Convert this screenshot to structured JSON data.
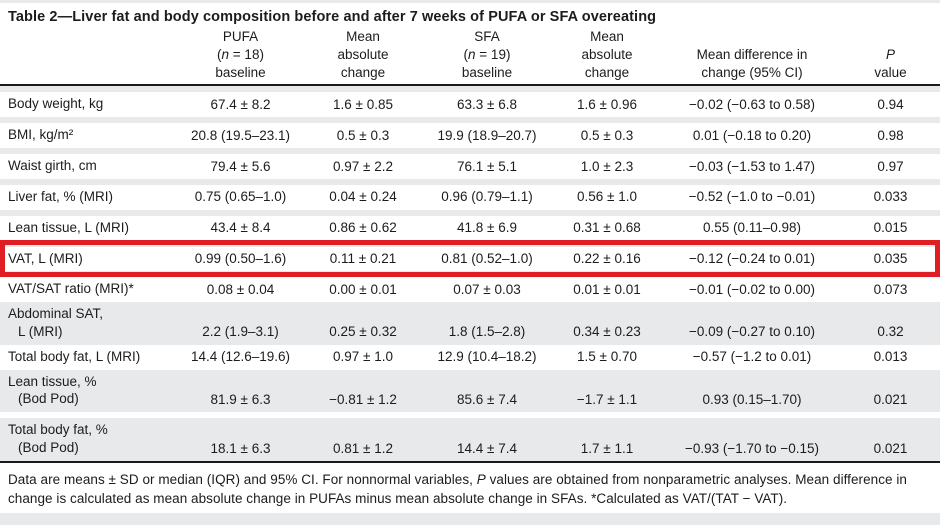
{
  "page": {
    "accent_red": "#e01d22",
    "stripe_gray": "#e8e9ea",
    "rule_black": "#1a1a1a"
  },
  "title": "Table 2—Liver fat and body composition before and after 7 weeks of PUFA or SFA overeating",
  "table": {
    "columns": [
      "",
      "PUFA\n(*n* = 18)\nbaseline",
      "Mean\nabsolute\nchange",
      "SFA\n(*n* = 19)\nbaseline",
      "Mean\nabsolute\nchange",
      "Mean difference in\nchange (95% CI)",
      "*P*\nvalue"
    ],
    "rows": [
      {
        "label": "Body weight, kg",
        "label2": "",
        "shade": "white",
        "sep_above": "gray",
        "highlighted": false,
        "values": [
          "67.4 ± 8.2",
          "1.6 ± 0.85",
          "63.3 ± 6.8",
          "1.6 ± 0.96",
          "−0.02 (−0.63 to 0.58)",
          "0.94"
        ]
      },
      {
        "label": "BMI, kg/m²",
        "label2": "",
        "shade": "white",
        "sep_above": "gray",
        "highlighted": false,
        "values": [
          "20.8 (19.5–23.1)",
          "0.5 ± 0.3",
          "19.9 (18.9–20.7)",
          "0.5 ± 0.3",
          "0.01 (−0.18 to 0.20)",
          "0.98"
        ]
      },
      {
        "label": "Waist girth, cm",
        "label2": "",
        "shade": "white",
        "sep_above": "gray",
        "highlighted": false,
        "values": [
          "79.4 ± 5.6",
          "0.97 ± 2.2",
          "76.1 ± 5.1",
          "1.0 ± 2.3",
          "−0.03 (−1.53 to 1.47)",
          "0.97"
        ]
      },
      {
        "label": "Liver fat, % (MRI)",
        "label2": "",
        "shade": "white",
        "sep_above": "gray",
        "highlighted": false,
        "values": [
          "0.75 (0.65–1.0)",
          "0.04 ± 0.24",
          "0.96 (0.79–1.1)",
          "0.56 ± 1.0",
          "−0.52 (−1.0 to −0.01)",
          "0.033"
        ]
      },
      {
        "label": "Lean tissue, L (MRI)",
        "label2": "",
        "shade": "white",
        "sep_above": "gray",
        "highlighted": false,
        "values": [
          "43.4 ± 8.4",
          "0.86 ± 0.62",
          "41.8 ± 6.9",
          "0.31 ± 0.68",
          "0.55 (0.11–0.98)",
          "0.015"
        ]
      },
      {
        "label": "VAT, L (MRI)",
        "label2": "",
        "shade": "white",
        "sep_above": "gray",
        "highlighted": true,
        "values": [
          "0.99 (0.50–1.6)",
          "0.11 ± 0.21",
          "0.81 (0.52–1.0)",
          "0.22 ± 0.16",
          "−0.12 (−0.24 to 0.01)",
          "0.035"
        ]
      },
      {
        "label": "VAT/SAT ratio (MRI)*",
        "label2": "",
        "shade": "white",
        "sep_above": "gray",
        "highlighted": false,
        "values": [
          "0.08 ± 0.04",
          "0.00 ± 0.01",
          "0.07 ± 0.03",
          "0.01 ± 0.01",
          "−0.01 (−0.02 to 0.00)",
          "0.073"
        ]
      },
      {
        "label": "Abdominal SAT,",
        "label2": "L (MRI)",
        "shade": "gray",
        "sep_above": "none",
        "highlighted": false,
        "values": [
          "2.2 (1.9–3.1)",
          "0.25 ± 0.32",
          "1.8 (1.5–2.8)",
          "0.34 ± 0.23",
          "−0.09 (−0.27 to 0.10)",
          "0.32"
        ]
      },
      {
        "label": "Total body fat, L (MRI)",
        "label2": "",
        "shade": "white",
        "sep_above": "none",
        "highlighted": false,
        "values": [
          "14.4 (12.6–19.6)",
          "0.97 ± 1.0",
          "12.9 (10.4–18.2)",
          "1.5 ± 0.70",
          "−0.57 (−1.2 to 0.01)",
          "0.013"
        ]
      },
      {
        "label": "Lean tissue, %",
        "label2": "(Bod Pod)",
        "shade": "gray",
        "sep_above": "none",
        "highlighted": false,
        "values": [
          "81.9 ± 6.3",
          "−0.81 ± 1.2",
          "85.6 ± 7.4",
          "−1.7 ± 1.1",
          "0.93 (0.15–1.70)",
          "0.021"
        ]
      },
      {
        "label": "Total body fat, %",
        "label2": "(Bod Pod)",
        "shade": "gray",
        "sep_above": "white",
        "highlighted": false,
        "values": [
          "18.1 ± 6.3",
          "0.81 ± 1.2",
          "14.4 ± 7.4",
          "1.7 ± 1.1",
          "−0.93 (−1.70 to −0.15)",
          "0.021"
        ]
      }
    ]
  },
  "footnote": "Data are means ± SD or median (IQR) and 95% CI. For nonnormal variables, *P* values are obtained from nonparametric analyses. Mean difference in change is calculated as mean absolute change in PUFAs minus mean absolute change in SFAs. *Calculated as VAT/(TAT − VAT)."
}
